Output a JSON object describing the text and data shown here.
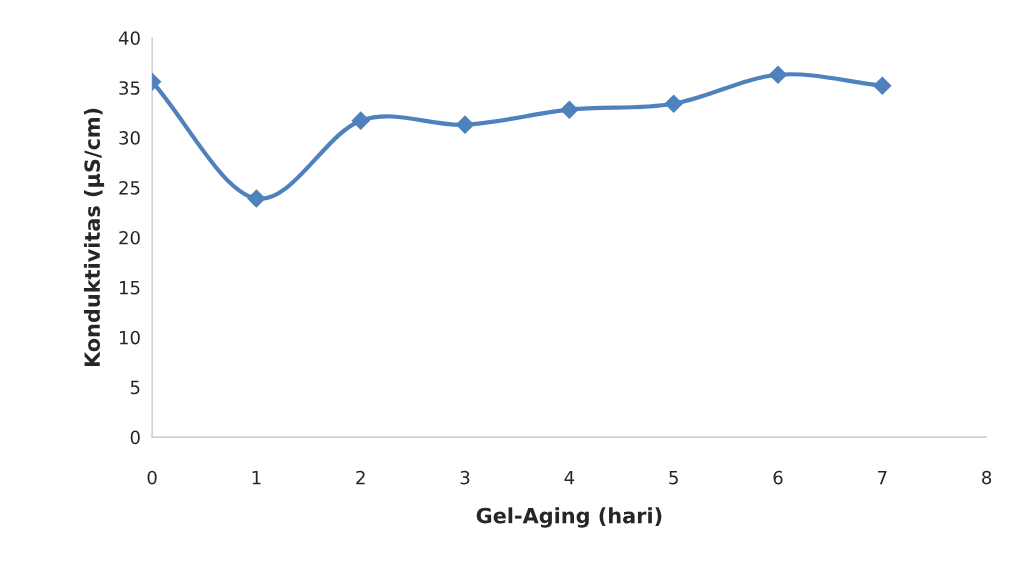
{
  "chart_data": {
    "type": "line",
    "xlabel": "Gel-Aging (hari)",
    "ylabel": "Konduktivitas (µS/cm)",
    "x": [
      0,
      1,
      2,
      3,
      4,
      5,
      6,
      7
    ],
    "series": [
      {
        "color": "#4f81bd",
        "values": [
          35.6,
          23.9,
          31.7,
          31.3,
          32.8,
          33.4,
          36.3,
          35.2
        ]
      }
    ],
    "xlim": [
      0,
      8
    ],
    "xticks": [
      0,
      1,
      2,
      3,
      4,
      5,
      6,
      7,
      8
    ],
    "ylim": [
      0,
      40
    ],
    "yticks": [
      0,
      5,
      10,
      15,
      20,
      25,
      30,
      35,
      40
    ],
    "marker": "diamond",
    "line_style": "solid",
    "grid": false
  }
}
